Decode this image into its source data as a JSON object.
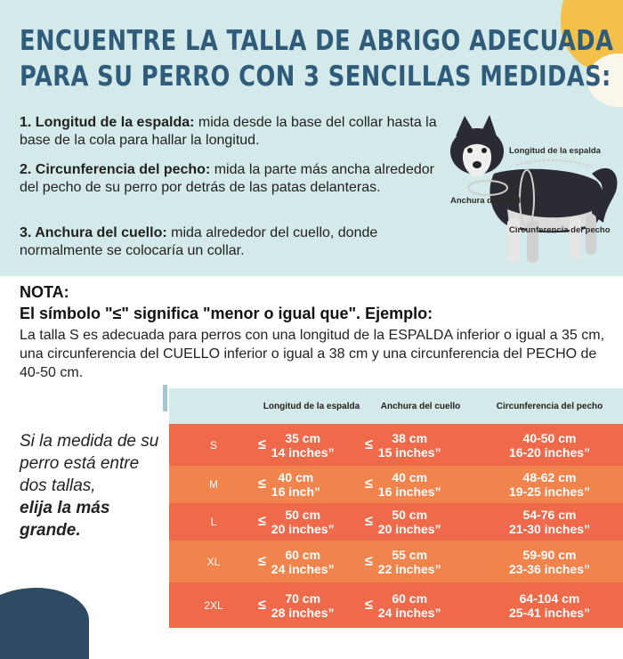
{
  "headline": {
    "line1": "ENCUENTRE LA TALLA DE ABRIGO ADECUADA",
    "line2": "PARA SU PERRO CON 3 SENCILLAS MEDIDAS:"
  },
  "instructions": [
    {
      "term": "1. Longitud de la espalda:",
      "text": " mida desde la base del collar hasta la base de la cola para hallar la longitud."
    },
    {
      "term": "2. Circunferencia del pecho:",
      "text": " mida la parte más ancha alrededor del pecho de su perro por detrás de las patas delanteras."
    },
    {
      "term": "3. Anchura del cuello:",
      "text": " mida alrededor del cuello, donde normalmente se colocaría un collar."
    }
  ],
  "diagram_labels": {
    "back": "Longitud de la espalda",
    "neck": "Anchura del cuello",
    "chest": "Circunferencia del pecho"
  },
  "note": {
    "title": "NOTA:",
    "subtitle": "El símbolo \"≤\" significa \"menor o igual que\". Ejemplo:",
    "body": "La talla S es adecuada para perros con una longitud de la ESPALDA inferior o igual a 35 cm, una circunferencia del CUELLO inferior o igual a 38 cm y una circunferencia del PECHO de 40-50 cm."
  },
  "side_note": {
    "text": "Si la medida de su perro está entre dos tallas,",
    "emphasis": "elija la más grande."
  },
  "table": {
    "headers": {
      "back": "Longitud de la espalda",
      "neck": "Anchura del cuello",
      "chest": "Circunferencia del pecho"
    },
    "le_symbol": "≤",
    "rows": [
      {
        "size": "S",
        "back_cm": "35 cm",
        "back_in": "14 inches”",
        "neck_cm": "38 cm",
        "neck_in": "15 inches”",
        "chest_cm": "40-50 cm",
        "chest_in": "16-20 inches”",
        "color": "#ee6a4a"
      },
      {
        "size": "M",
        "back_cm": "40 cm",
        "back_in": "16 inch”",
        "neck_cm": "40 cm",
        "neck_in": "16 inches”",
        "chest_cm": "48-62 cm",
        "chest_in": "19-25 inches”",
        "color": "#f1844c"
      },
      {
        "size": "L",
        "back_cm": "50 cm",
        "back_in": "20 inches”",
        "neck_cm": "50 cm",
        "neck_in": "20 inches”",
        "chest_cm": "54-76 cm",
        "chest_in": "21-30 inches”",
        "color": "#ee6a4a"
      },
      {
        "size": "XL",
        "back_cm": "60 cm",
        "back_in": "24 inches”",
        "neck_cm": "55 cm",
        "neck_in": "22 inches”",
        "chest_cm": "59-90 cm",
        "chest_in": "23-36 inches”",
        "color": "#f1844c"
      },
      {
        "size": "2XL",
        "back_cm": "70 cm",
        "back_in": "28 inches”",
        "neck_cm": "60 cm",
        "neck_in": "24 inches”",
        "chest_cm": "64-104 cm",
        "chest_in": "25-41 inches”",
        "color": "#ee6a4a"
      }
    ]
  },
  "colors": {
    "panel_bg": "#d4e9ea",
    "headline": "#2f5c7a",
    "row_red": "#ee6a4a",
    "row_orange": "#f1844c",
    "accent_yellow": "#f3c14a",
    "accent_navy": "#2f4a63"
  }
}
